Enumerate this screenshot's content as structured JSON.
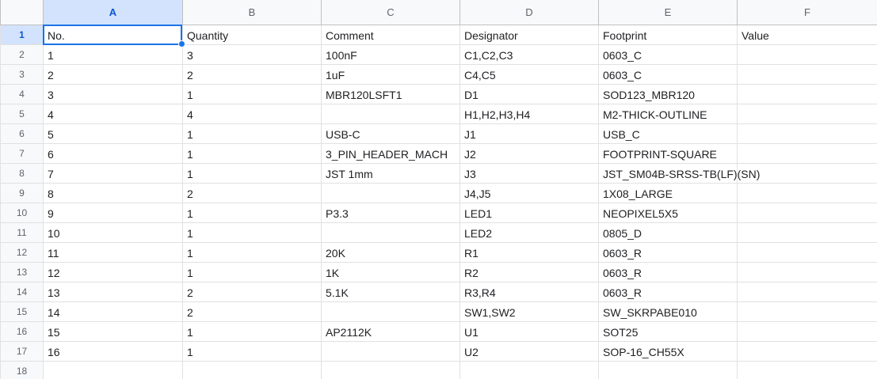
{
  "columns": [
    "A",
    "B",
    "C",
    "D",
    "E",
    "F"
  ],
  "row_numbers": [
    "1",
    "2",
    "3",
    "4",
    "5",
    "6",
    "7",
    "8",
    "9",
    "10",
    "11",
    "12",
    "13",
    "14",
    "15",
    "16",
    "17",
    "18"
  ],
  "rows": [
    [
      "No.",
      "Quantity",
      "Comment",
      "Designator",
      "Footprint",
      "Value"
    ],
    [
      "1",
      "3",
      "100nF",
      "C1,C2,C3",
      "0603_C",
      ""
    ],
    [
      "2",
      "2",
      "1uF",
      "C4,C5",
      "0603_C",
      ""
    ],
    [
      "3",
      "1",
      "MBR120LSFT1",
      "D1",
      "SOD123_MBR120",
      ""
    ],
    [
      "4",
      "4",
      "",
      "H1,H2,H3,H4",
      "M2-THICK-OUTLINE",
      ""
    ],
    [
      "5",
      "1",
      "USB-C",
      "J1",
      "USB_C",
      ""
    ],
    [
      "6",
      "1",
      "3_PIN_HEADER_MACH",
      "J2",
      "FOOTPRINT-SQUARE",
      ""
    ],
    [
      "7",
      "1",
      "JST 1mm",
      "J3",
      "JST_SM04B-SRSS-TB(LF)(SN)",
      ""
    ],
    [
      "8",
      "2",
      "",
      "J4,J5",
      "1X08_LARGE",
      ""
    ],
    [
      "9",
      "1",
      "P3.3",
      "LED1",
      "NEOPIXEL5X5",
      ""
    ],
    [
      "10",
      "1",
      "",
      "LED2",
      "0805_D",
      ""
    ],
    [
      "11",
      "1",
      "20K",
      "R1",
      "0603_R",
      ""
    ],
    [
      "12",
      "1",
      "1K",
      "R2",
      "0603_R",
      ""
    ],
    [
      "13",
      "2",
      "5.1K",
      "R3,R4",
      "0603_R",
      ""
    ],
    [
      "14",
      "2",
      "",
      "SW1,SW2",
      "SW_SKRPABE010",
      ""
    ],
    [
      "15",
      "1",
      "AP2112K",
      "U1",
      "SOT25",
      ""
    ],
    [
      "16",
      "1",
      "",
      "U2",
      "SOP-16_CH55X",
      ""
    ],
    [
      "",
      "",
      "",
      "",
      "",
      ""
    ]
  ],
  "selection": {
    "column": "A",
    "row": "1"
  },
  "colors": {
    "selection": "#1a73e8",
    "header_selected_bg": "#d3e3fd",
    "header_bg": "#f8f9fa"
  }
}
